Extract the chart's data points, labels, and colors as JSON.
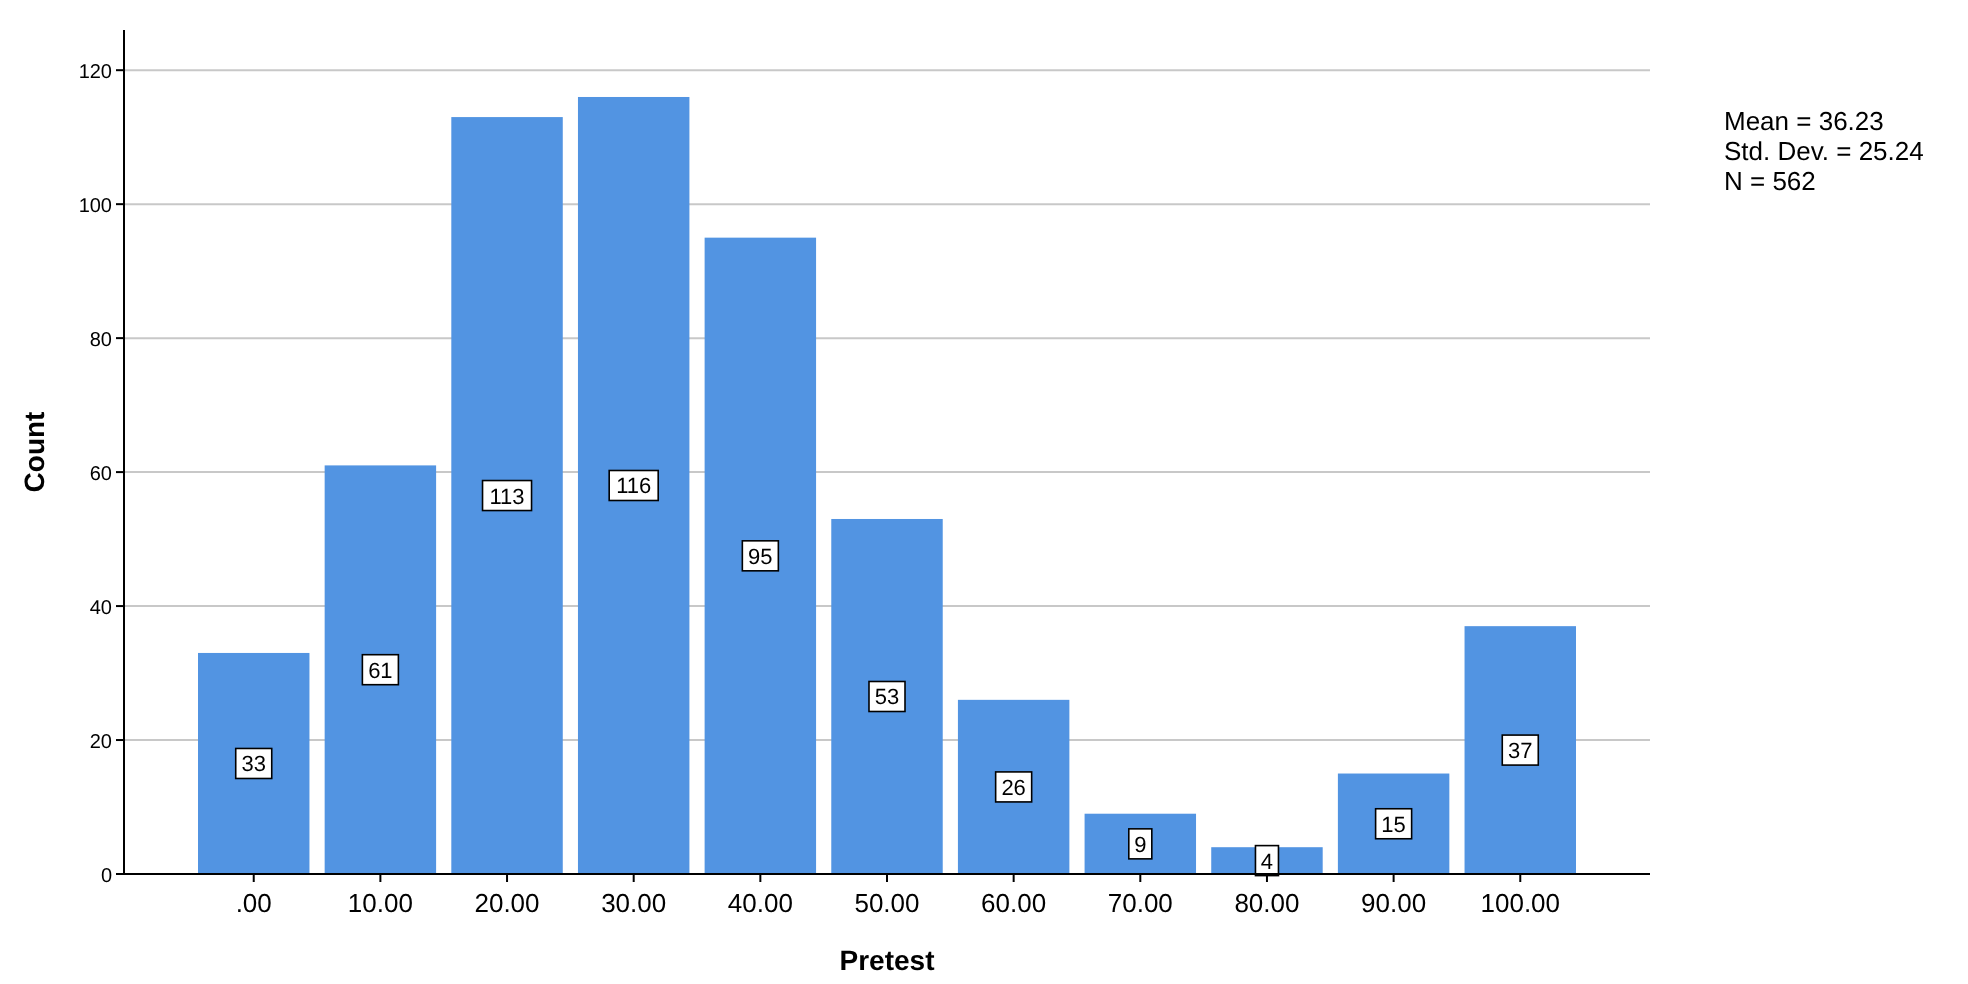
{
  "chart_data": {
    "type": "bar",
    "xlabel": "Pretest",
    "ylabel": "Count",
    "categories": [
      ".00",
      "10.00",
      "20.00",
      "30.00",
      "40.00",
      "50.00",
      "60.00",
      "70.00",
      "80.00",
      "90.00",
      "100.00"
    ],
    "values": [
      33,
      61,
      113,
      116,
      95,
      53,
      26,
      9,
      4,
      15,
      37
    ],
    "color": "#5294e2",
    "ylim": [
      0,
      126
    ],
    "yticks": [
      0,
      20,
      40,
      60,
      80,
      100,
      120
    ],
    "grid": "y",
    "data_labels": true,
    "annotations": [
      "Mean = 36.23",
      "Std. Dev. = 25.24",
      "N = 562"
    ]
  }
}
